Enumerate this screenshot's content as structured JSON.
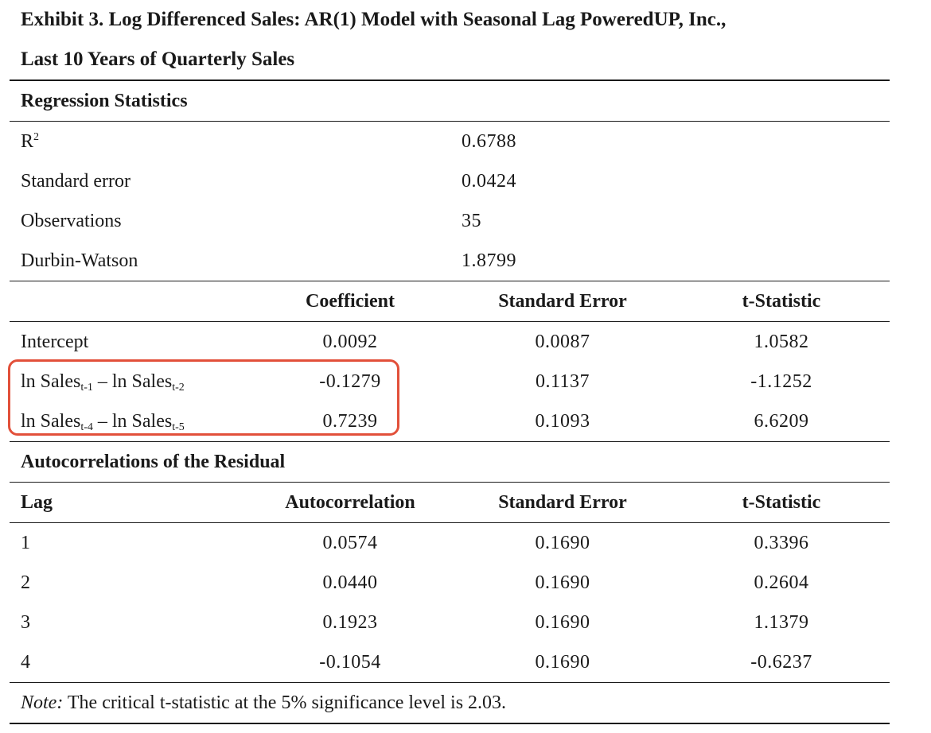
{
  "title_line1": "Exhibit 3. Log Differenced Sales: AR(1) Model with Seasonal Lag PoweredUP, Inc.,",
  "title_line2": "Last 10 Years of Quarterly Sales",
  "regression_statistics": {
    "heading": "Regression Statistics",
    "rows": [
      {
        "label_main": "R",
        "label_sup": "2",
        "value": "0.6788"
      },
      {
        "label": "Standard error",
        "value": "0.0424"
      },
      {
        "label": "Observations",
        "value": "35"
      },
      {
        "label": "Durbin-Watson",
        "value": "1.8799"
      }
    ]
  },
  "coefficients": {
    "headers": [
      "Coefficient",
      "Standard Error",
      "t-Statistic"
    ],
    "rows": [
      {
        "label": "Intercept",
        "coefficient": "0.0092",
        "std_error": "0.0087",
        "t_stat": "1.0582"
      },
      {
        "label_a": "ln Sales",
        "sub_a": "t-1",
        "label_b": " – ln Sales",
        "sub_b": "t-2",
        "coefficient": "-0.1279",
        "std_error": "0.1137",
        "t_stat": "-1.1252"
      },
      {
        "label_a": "ln Sales",
        "sub_a": "t-4",
        "label_b": " – ln Sales",
        "sub_b": "t-5",
        "coefficient": "0.7239",
        "std_error": "0.1093",
        "t_stat": "6.6209"
      }
    ],
    "highlight_color": "#e2503a"
  },
  "autocorrelations": {
    "heading": "Autocorrelations of the Residual",
    "headers": [
      "Lag",
      "Autocorrelation",
      "Standard Error",
      "t-Statistic"
    ],
    "rows": [
      {
        "lag": "1",
        "autocorrelation": "0.0574",
        "std_error": "0.1690",
        "t_stat": "0.3396"
      },
      {
        "lag": "2",
        "autocorrelation": "0.0440",
        "std_error": "0.1690",
        "t_stat": "0.2604"
      },
      {
        "lag": "3",
        "autocorrelation": "0.1923",
        "std_error": "0.1690",
        "t_stat": "1.1379"
      },
      {
        "lag": "4",
        "autocorrelation": "-0.1054",
        "std_error": "0.1690",
        "t_stat": "-0.6237"
      }
    ]
  },
  "note": {
    "label": "Note:",
    "text": " The critical t-statistic at the 5% significance level is 2.03."
  }
}
